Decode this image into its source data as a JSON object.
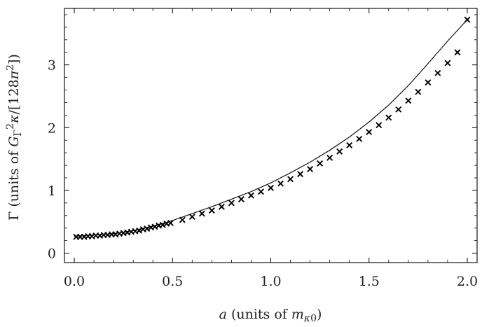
{
  "chart_data": {
    "type": "scatter",
    "title": "",
    "xlabel": "a (units of m_κ0)",
    "ylabel": "Γ (units of G_Γ² κ/[128π²])",
    "xlim": [
      -0.05,
      2.05
    ],
    "ylim": [
      -0.15,
      3.9
    ],
    "xticks": [
      "0.0",
      "0.5",
      "1.0",
      "1.5",
      "2.0"
    ],
    "yticks": [
      "0",
      "1",
      "2",
      "3"
    ],
    "grid": false,
    "legend": "none",
    "series": [
      {
        "kind": "line",
        "x": [
          0.0,
          0.1,
          0.2,
          0.3,
          0.4,
          0.5,
          0.6,
          0.7,
          0.8,
          0.9,
          1.0,
          1.1,
          1.2,
          1.3,
          1.4,
          1.5,
          1.6,
          1.7,
          1.8,
          1.9,
          2.0
        ],
        "y": [
          0.27,
          0.29,
          0.31,
          0.36,
          0.43,
          0.52,
          0.63,
          0.74,
          0.86,
          0.98,
          1.12,
          1.28,
          1.45,
          1.64,
          1.85,
          2.09,
          2.36,
          2.67,
          3.02,
          3.38,
          3.72
        ]
      },
      {
        "kind": "marker",
        "marker": "x",
        "x": [
          0.01,
          0.03,
          0.05,
          0.07,
          0.09,
          0.11,
          0.13,
          0.15,
          0.17,
          0.19,
          0.21,
          0.23,
          0.25,
          0.27,
          0.29,
          0.31,
          0.33,
          0.35,
          0.37,
          0.39,
          0.41,
          0.43,
          0.45,
          0.47,
          0.49,
          0.55,
          0.6,
          0.65,
          0.7,
          0.75,
          0.8,
          0.85,
          0.9,
          0.95,
          1.0,
          1.05,
          1.1,
          1.15,
          1.2,
          1.25,
          1.3,
          1.35,
          1.4,
          1.45,
          1.5,
          1.55,
          1.6,
          1.65,
          1.7,
          1.75,
          1.8,
          1.85,
          1.9,
          1.95,
          2.0
        ],
        "y": [
          0.26,
          0.26,
          0.26,
          0.27,
          0.27,
          0.28,
          0.28,
          0.29,
          0.29,
          0.3,
          0.3,
          0.31,
          0.32,
          0.33,
          0.34,
          0.35,
          0.36,
          0.38,
          0.39,
          0.41,
          0.42,
          0.44,
          0.45,
          0.47,
          0.48,
          0.53,
          0.58,
          0.63,
          0.68,
          0.74,
          0.8,
          0.86,
          0.92,
          0.98,
          1.04,
          1.11,
          1.18,
          1.26,
          1.34,
          1.43,
          1.52,
          1.62,
          1.72,
          1.82,
          1.93,
          2.04,
          2.16,
          2.29,
          2.43,
          2.57,
          2.72,
          2.87,
          3.03,
          3.2,
          3.72
        ]
      }
    ]
  }
}
